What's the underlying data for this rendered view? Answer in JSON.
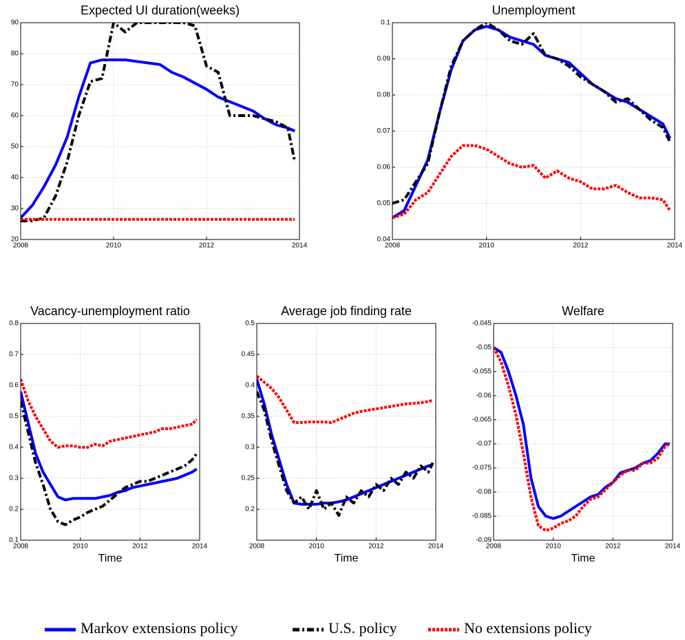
{
  "chart_data": [
    {
      "type": "line",
      "title": "Expected UI duration(weeks)",
      "x": [
        2008,
        2008.25,
        2008.5,
        2008.75,
        2009,
        2009.25,
        2009.5,
        2009.75,
        2010,
        2010.25,
        2010.5,
        2010.75,
        2011,
        2011.25,
        2011.5,
        2011.75,
        2012,
        2012.25,
        2012.5,
        2012.75,
        2013,
        2013.25,
        2013.5,
        2013.75,
        2013.9
      ],
      "xlim": [
        2008,
        2014
      ],
      "xticks": [
        2008,
        2010,
        2012,
        2014
      ],
      "ylim": [
        20,
        90
      ],
      "yticks": [
        20,
        30,
        40,
        50,
        60,
        70,
        80,
        90
      ],
      "grid": true,
      "series": [
        {
          "name": "Markov extensions policy",
          "color": "#0000ff",
          "dash": "solid",
          "values": [
            27,
            31,
            37,
            44,
            53,
            66,
            77,
            78,
            78,
            78,
            77.5,
            77,
            76.5,
            74,
            72.5,
            70.5,
            68.5,
            66,
            64.5,
            63,
            61.5,
            59,
            57,
            56,
            55
          ]
        },
        {
          "name": "U.S. policy",
          "color": "#000000",
          "dash": "dashdot",
          "values": [
            26,
            26,
            27,
            34,
            45,
            60,
            71,
            72,
            90,
            87,
            90,
            90,
            90,
            90,
            90,
            89,
            76,
            74,
            60,
            60,
            60,
            59,
            58,
            56,
            45
          ]
        },
        {
          "name": "No extensions policy",
          "color": "#ff0000",
          "dash": "dotted",
          "values": [
            26.5,
            26.5,
            26.5,
            26.5,
            26.5,
            26.5,
            26.5,
            26.5,
            26.5,
            26.5,
            26.5,
            26.5,
            26.5,
            26.5,
            26.5,
            26.5,
            26.5,
            26.5,
            26.5,
            26.5,
            26.5,
            26.5,
            26.5,
            26.5,
            26.5
          ]
        }
      ]
    },
    {
      "type": "line",
      "title": "Unemployment",
      "x": [
        2008,
        2008.25,
        2008.5,
        2008.75,
        2009,
        2009.25,
        2009.5,
        2009.75,
        2010,
        2010.25,
        2010.5,
        2010.75,
        2011,
        2011.25,
        2011.5,
        2011.75,
        2012,
        2012.25,
        2012.5,
        2012.75,
        2013,
        2013.25,
        2013.5,
        2013.75,
        2013.9
      ],
      "xlim": [
        2008,
        2014
      ],
      "xticks": [
        2008,
        2010,
        2012,
        2014
      ],
      "ylim": [
        0.04,
        0.1
      ],
      "yticks": [
        0.04,
        0.05,
        0.06,
        0.07,
        0.08,
        0.09,
        0.1
      ],
      "grid": true,
      "series": [
        {
          "color": "#0000ff",
          "dash": "solid",
          "values": [
            0.046,
            0.048,
            0.055,
            0.062,
            0.075,
            0.087,
            0.095,
            0.098,
            0.099,
            0.098,
            0.096,
            0.095,
            0.094,
            0.091,
            0.09,
            0.089,
            0.086,
            0.083,
            0.081,
            0.079,
            0.078,
            0.076,
            0.074,
            0.072,
            0.068
          ]
        },
        {
          "color": "#000000",
          "dash": "dashdot",
          "values": [
            0.05,
            0.051,
            0.056,
            0.061,
            0.075,
            0.088,
            0.095,
            0.098,
            0.1,
            0.098,
            0.095,
            0.094,
            0.097,
            0.091,
            0.09,
            0.088,
            0.085,
            0.083,
            0.081,
            0.078,
            0.079,
            0.076,
            0.073,
            0.071,
            0.067
          ]
        },
        {
          "color": "#ff0000",
          "dash": "dotted",
          "values": [
            0.046,
            0.047,
            0.051,
            0.053,
            0.058,
            0.063,
            0.066,
            0.066,
            0.065,
            0.063,
            0.061,
            0.06,
            0.0605,
            0.057,
            0.059,
            0.057,
            0.056,
            0.054,
            0.054,
            0.055,
            0.053,
            0.0515,
            0.0515,
            0.051,
            0.048
          ]
        }
      ]
    },
    {
      "type": "line",
      "title": "Vacancy-unemployment ratio",
      "xlabel": "Time",
      "x": [
        2008,
        2008.25,
        2008.5,
        2008.75,
        2009,
        2009.25,
        2009.5,
        2009.75,
        2010,
        2010.25,
        2010.5,
        2010.75,
        2011,
        2011.25,
        2011.5,
        2011.75,
        2012,
        2012.25,
        2012.5,
        2012.75,
        2013,
        2013.25,
        2013.5,
        2013.75,
        2013.9
      ],
      "xlim": [
        2008,
        2014
      ],
      "xticks": [
        2008,
        2010,
        2012,
        2014
      ],
      "ylim": [
        0.1,
        0.8
      ],
      "yticks": [
        0.1,
        0.2,
        0.3,
        0.4,
        0.5,
        0.6,
        0.7,
        0.8
      ],
      "grid": true,
      "series": [
        {
          "color": "#0000ff",
          "dash": "solid",
          "values": [
            0.58,
            0.48,
            0.38,
            0.32,
            0.28,
            0.24,
            0.23,
            0.235,
            0.235,
            0.235,
            0.235,
            0.24,
            0.245,
            0.255,
            0.26,
            0.27,
            0.275,
            0.28,
            0.285,
            0.29,
            0.295,
            0.3,
            0.31,
            0.32,
            0.33
          ]
        },
        {
          "color": "#000000",
          "dash": "dashdot",
          "values": [
            0.55,
            0.45,
            0.35,
            0.28,
            0.2,
            0.16,
            0.15,
            0.165,
            0.175,
            0.19,
            0.2,
            0.21,
            0.23,
            0.25,
            0.27,
            0.28,
            0.29,
            0.29,
            0.3,
            0.31,
            0.32,
            0.33,
            0.34,
            0.36,
            0.38
          ]
        },
        {
          "color": "#ff0000",
          "dash": "dotted",
          "values": [
            0.62,
            0.55,
            0.5,
            0.46,
            0.42,
            0.4,
            0.405,
            0.405,
            0.4,
            0.4,
            0.41,
            0.405,
            0.42,
            0.425,
            0.43,
            0.435,
            0.44,
            0.445,
            0.45,
            0.46,
            0.46,
            0.465,
            0.47,
            0.475,
            0.49
          ]
        }
      ]
    },
    {
      "type": "line",
      "title": "Average job finding rate",
      "xlabel": "Time",
      "x": [
        2008,
        2008.25,
        2008.5,
        2008.75,
        2009,
        2009.25,
        2009.5,
        2009.75,
        2010,
        2010.25,
        2010.5,
        2010.75,
        2011,
        2011.25,
        2011.5,
        2011.75,
        2012,
        2012.25,
        2012.5,
        2012.75,
        2013,
        2013.25,
        2013.5,
        2013.75,
        2013.9
      ],
      "xlim": [
        2008,
        2014
      ],
      "xticks": [
        2008,
        2010,
        2012,
        2014
      ],
      "ylim": [
        0.15,
        0.5
      ],
      "yticks": [
        0.2,
        0.25,
        0.3,
        0.35,
        0.4,
        0.45,
        0.5
      ],
      "grid": true,
      "series": [
        {
          "color": "#0000ff",
          "dash": "solid",
          "values": [
            0.41,
            0.37,
            0.32,
            0.28,
            0.24,
            0.21,
            0.208,
            0.208,
            0.208,
            0.21,
            0.21,
            0.212,
            0.215,
            0.22,
            0.225,
            0.23,
            0.235,
            0.24,
            0.245,
            0.25,
            0.255,
            0.26,
            0.265,
            0.27,
            0.272
          ]
        },
        {
          "color": "#000000",
          "dash": "dashdot",
          "values": [
            0.39,
            0.36,
            0.31,
            0.27,
            0.23,
            0.21,
            0.22,
            0.2,
            0.23,
            0.2,
            0.21,
            0.19,
            0.22,
            0.21,
            0.23,
            0.22,
            0.24,
            0.23,
            0.25,
            0.24,
            0.26,
            0.25,
            0.27,
            0.26,
            0.275
          ]
        },
        {
          "color": "#ff0000",
          "dash": "dotted",
          "values": [
            0.415,
            0.405,
            0.395,
            0.38,
            0.36,
            0.34,
            0.34,
            0.341,
            0.341,
            0.341,
            0.34,
            0.345,
            0.35,
            0.355,
            0.358,
            0.36,
            0.362,
            0.364,
            0.366,
            0.368,
            0.37,
            0.371,
            0.372,
            0.374,
            0.376
          ]
        }
      ]
    },
    {
      "type": "line",
      "title": "Welfare",
      "xlabel": "Time",
      "x": [
        2008,
        2008.25,
        2008.5,
        2008.75,
        2009,
        2009.25,
        2009.5,
        2009.75,
        2010,
        2010.25,
        2010.5,
        2010.75,
        2011,
        2011.25,
        2011.5,
        2011.75,
        2012,
        2012.25,
        2012.5,
        2012.75,
        2013,
        2013.25,
        2013.5,
        2013.75,
        2013.9
      ],
      "xlim": [
        2008,
        2014
      ],
      "xticks": [
        2008,
        2010,
        2012,
        2014
      ],
      "ylim": [
        -0.09,
        -0.045
      ],
      "yticks": [
        -0.09,
        -0.085,
        -0.08,
        -0.075,
        -0.07,
        -0.065,
        -0.06,
        -0.055,
        -0.05,
        -0.045
      ],
      "grid": true,
      "series": [
        {
          "color": "#0000ff",
          "dash": "solid",
          "values": [
            -0.05,
            -0.051,
            -0.055,
            -0.06,
            -0.066,
            -0.077,
            -0.083,
            -0.085,
            -0.0855,
            -0.085,
            -0.084,
            -0.083,
            -0.082,
            -0.081,
            -0.0805,
            -0.079,
            -0.078,
            -0.076,
            -0.0755,
            -0.075,
            -0.074,
            -0.0735,
            -0.072,
            -0.07,
            -0.07
          ]
        },
        {
          "color": "#ff0000",
          "dash": "dotted",
          "values": [
            -0.05,
            -0.053,
            -0.058,
            -0.064,
            -0.072,
            -0.081,
            -0.087,
            -0.088,
            -0.0875,
            -0.0865,
            -0.086,
            -0.085,
            -0.083,
            -0.0815,
            -0.081,
            -0.0795,
            -0.078,
            -0.0765,
            -0.0755,
            -0.0755,
            -0.074,
            -0.074,
            -0.073,
            -0.0705,
            -0.07
          ]
        }
      ]
    }
  ]
}
